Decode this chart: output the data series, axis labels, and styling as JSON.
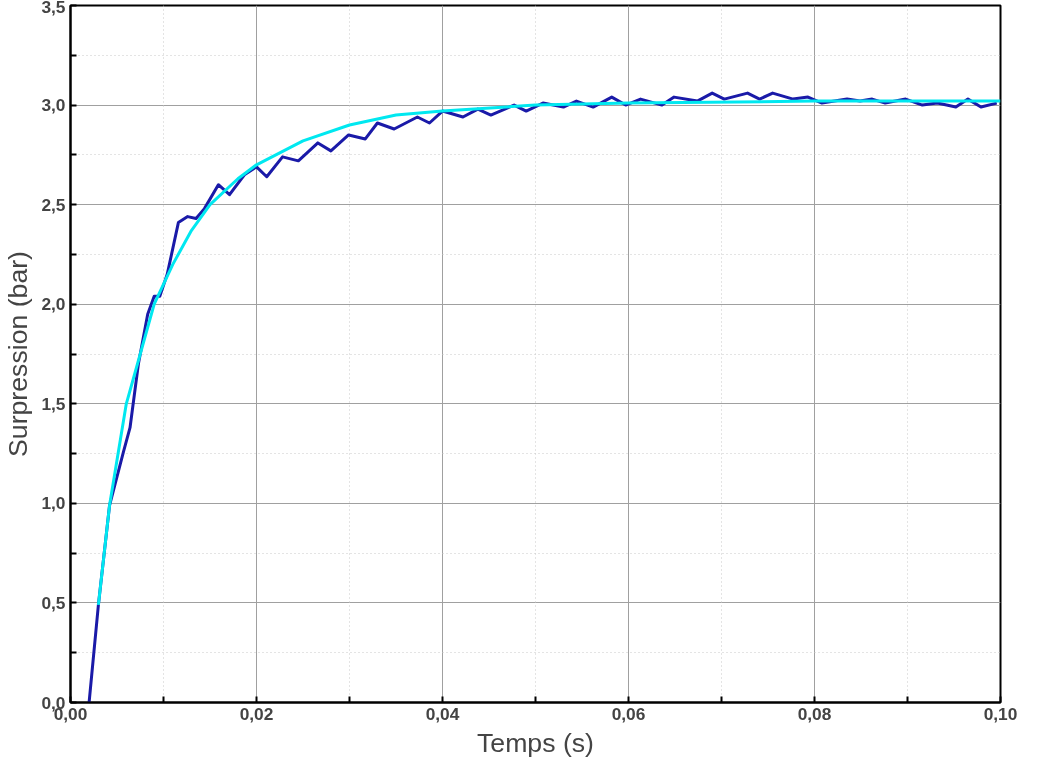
{
  "chart_data": {
    "type": "line",
    "xlabel": "Temps (s)",
    "ylabel": "Surpression (bar)",
    "xlim": [
      0,
      0.1
    ],
    "ylim": [
      0,
      3.5
    ],
    "xticks": [
      {
        "value": 0,
        "label": "0,00"
      },
      {
        "value": 0.01,
        "label": null
      },
      {
        "value": 0.02,
        "label": "0,02"
      },
      {
        "value": 0.03,
        "label": null
      },
      {
        "value": 0.04,
        "label": "0,04"
      },
      {
        "value": 0.05,
        "label": null
      },
      {
        "value": 0.06,
        "label": "0,06"
      },
      {
        "value": 0.07,
        "label": null
      },
      {
        "value": 0.08,
        "label": "0,08"
      },
      {
        "value": 0.09,
        "label": null
      },
      {
        "value": 0.1,
        "label": "0,10"
      }
    ],
    "yticks": [
      {
        "value": 0,
        "label": "0,0"
      },
      {
        "value": 0.25,
        "label": null
      },
      {
        "value": 0.5,
        "label": "0,5"
      },
      {
        "value": 0.75,
        "label": null
      },
      {
        "value": 1,
        "label": "1,0"
      },
      {
        "value": 1.25,
        "label": null
      },
      {
        "value": 1.5,
        "label": "1,5"
      },
      {
        "value": 1.75,
        "label": null
      },
      {
        "value": 2,
        "label": "2,0"
      },
      {
        "value": 2.25,
        "label": null
      },
      {
        "value": 2.5,
        "label": "2,5"
      },
      {
        "value": 2.75,
        "label": null
      },
      {
        "value": 3,
        "label": "3,0"
      },
      {
        "value": 3.25,
        "label": null
      },
      {
        "value": 3.5,
        "label": "3,5"
      }
    ],
    "grid": true,
    "line_style": "solid",
    "marker": "none",
    "series": [
      {
        "color": "#1a1aa8",
        "x": [
          0.002,
          0.003,
          0.0042,
          0.0057,
          0.0064,
          0.0073,
          0.0083,
          0.009,
          0.0096,
          0.0104,
          0.0116,
          0.0126,
          0.0135,
          0.0144,
          0.0159,
          0.0171,
          0.0187,
          0.02,
          0.0211,
          0.0228,
          0.0245,
          0.0266,
          0.028,
          0.0299,
          0.0317,
          0.033,
          0.0348,
          0.0373,
          0.0386,
          0.04,
          0.0422,
          0.0438,
          0.0452,
          0.0477,
          0.049,
          0.0508,
          0.053,
          0.0544,
          0.0562,
          0.0582,
          0.0597,
          0.0613,
          0.0636,
          0.0649,
          0.0674,
          0.069,
          0.0703,
          0.0728,
          0.0741,
          0.0755,
          0.0777,
          0.0793,
          0.0808,
          0.0835,
          0.0849,
          0.0862,
          0.0876,
          0.0898,
          0.0916,
          0.0932,
          0.0952,
          0.0965,
          0.0979,
          0.0996
        ],
        "values": [
          0,
          0.49,
          0.99,
          1.26,
          1.38,
          1.7,
          1.95,
          2.04,
          2.04,
          2.15,
          2.41,
          2.44,
          2.43,
          2.48,
          2.6,
          2.55,
          2.65,
          2.69,
          2.64,
          2.74,
          2.72,
          2.81,
          2.77,
          2.85,
          2.83,
          2.91,
          2.88,
          2.94,
          2.91,
          2.97,
          2.94,
          2.98,
          2.95,
          3.0,
          2.97,
          3.01,
          2.99,
          3.02,
          2.99,
          3.04,
          3.0,
          3.03,
          3.0,
          3.04,
          3.02,
          3.06,
          3.03,
          3.06,
          3.03,
          3.06,
          3.03,
          3.04,
          3.01,
          3.03,
          3.02,
          3.03,
          3.01,
          3.03,
          3.0,
          3.01,
          2.99,
          3.03,
          2.99,
          3.01
        ]
      },
      {
        "color": "#00e8f0",
        "x": [
          0.003,
          0.0042,
          0.006,
          0.0075,
          0.009,
          0.011,
          0.013,
          0.015,
          0.018,
          0.02,
          0.025,
          0.03,
          0.035,
          0.04,
          0.05,
          0.06,
          0.08,
          0.1
        ],
        "values": [
          0.49,
          0.99,
          1.5,
          1.75,
          2.0,
          2.2,
          2.37,
          2.5,
          2.63,
          2.7,
          2.82,
          2.9,
          2.95,
          2.97,
          3.0,
          3.01,
          3.02,
          3.02
        ]
      }
    ]
  }
}
